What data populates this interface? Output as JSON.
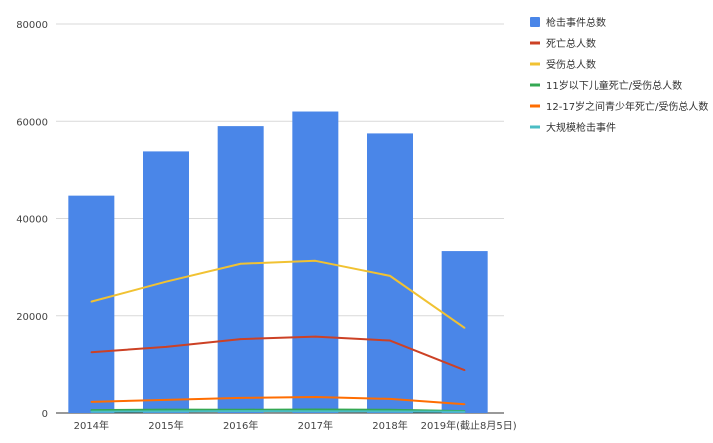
{
  "chart_data": {
    "type": "bar",
    "categories": [
      "2014年",
      "2015年",
      "2016年",
      "2017年",
      "2018年",
      "2019年(截止8月5日)"
    ],
    "ylim": [
      0,
      80000
    ],
    "yticks": [
      "0",
      "20000",
      "40000",
      "60000",
      "80000"
    ],
    "grid": true,
    "legend_position": "right",
    "bars": {
      "name": "枪击事件总数",
      "color": "#4a86e8",
      "values": [
        44700,
        53800,
        59000,
        62000,
        57500,
        33300
      ]
    },
    "lines": [
      {
        "name": "死亡总人数",
        "color": "#cc4125",
        "values": [
          12500,
          13600,
          15200,
          15700,
          14900,
          8800
        ]
      },
      {
        "name": "受伤总人数",
        "color": "#f1c232",
        "values": [
          22900,
          27000,
          30700,
          31300,
          28200,
          17500
        ]
      },
      {
        "name": "11岁以下儿童死亡/受伤总人数",
        "color": "#34a853",
        "values": [
          600,
          690,
          670,
          730,
          660,
          380
        ]
      },
      {
        "name": "12-17岁之间青少年死亡/受伤总人数",
        "color": "#ff6d01",
        "values": [
          2300,
          2700,
          3100,
          3300,
          2900,
          1800
        ]
      },
      {
        "name": "大规模枪击事件",
        "color": "#4bbdc4",
        "values": [
          270,
          330,
          380,
          350,
          340,
          250
        ]
      }
    ],
    "legend": [
      {
        "name": "枪击事件总数",
        "color": "#4a86e8",
        "kind": "square"
      },
      {
        "name": "死亡总人数",
        "color": "#cc4125",
        "kind": "line"
      },
      {
        "name": "受伤总人数",
        "color": "#f1c232",
        "kind": "line"
      },
      {
        "name": "11岁以下儿童死亡/受伤总人数",
        "color": "#34a853",
        "kind": "line"
      },
      {
        "name": "12-17岁之间青少年死亡/受伤总人数",
        "color": "#ff6d01",
        "kind": "line"
      },
      {
        "name": "大规模枪击事件",
        "color": "#4bbdc4",
        "kind": "line"
      }
    ]
  }
}
